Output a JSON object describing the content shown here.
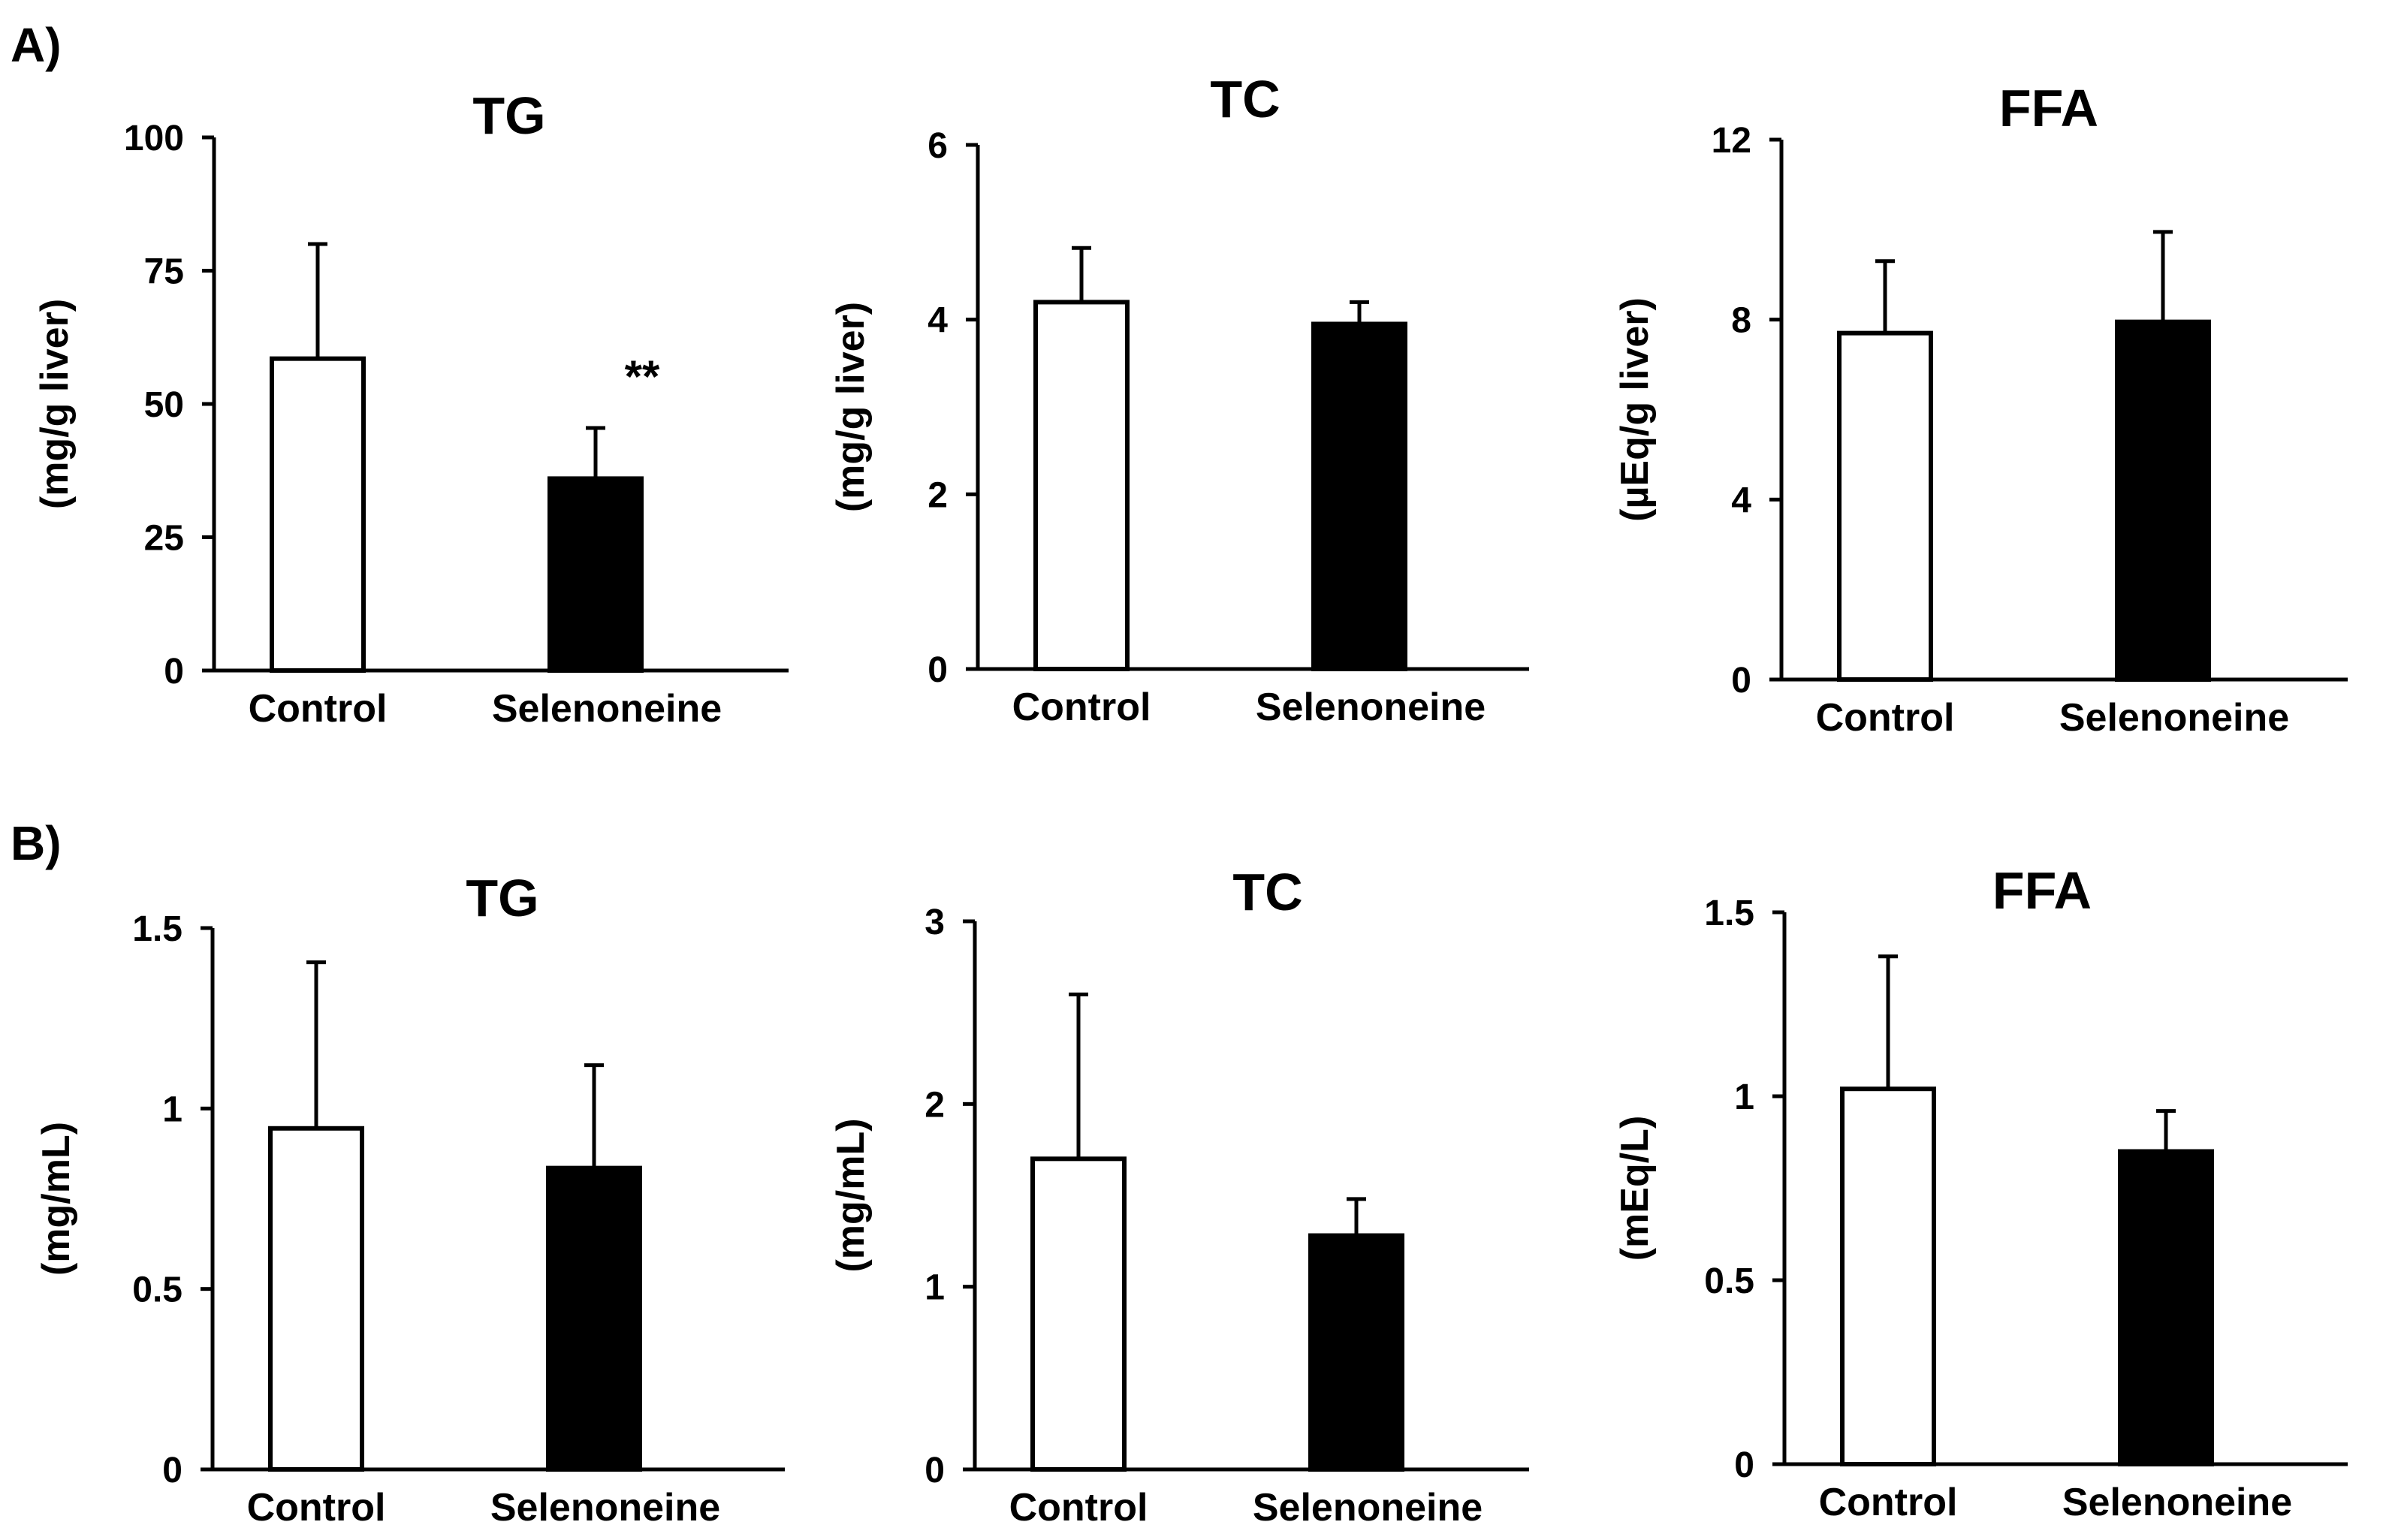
{
  "panels": [
    {
      "label": "A)"
    },
    {
      "label": "B)"
    }
  ],
  "chart_data": [
    {
      "type": "bar",
      "panel": "A)",
      "title": "TG",
      "xlabel": "",
      "ylabel": "(mg/g liver)",
      "categories": [
        "Control",
        "Selenoneine"
      ],
      "values": [
        58.5,
        36.0
      ],
      "errors": [
        21.5,
        9.5
      ],
      "ylim": [
        0,
        100
      ],
      "yticks": [
        "0",
        "25",
        "50",
        "75",
        "100"
      ],
      "bar_colors": [
        "#ffffff",
        "#000000"
      ],
      "annotations": [
        "",
        "**"
      ]
    },
    {
      "type": "bar",
      "panel": "A)",
      "title": "TC",
      "xlabel": "",
      "ylabel": "(mg/g liver)",
      "categories": [
        "Control",
        "Selenoneine"
      ],
      "values": [
        4.2,
        3.95
      ],
      "errors": [
        0.62,
        0.25
      ],
      "ylim": [
        0,
        6
      ],
      "yticks": [
        "0",
        "2",
        "4",
        "6"
      ],
      "bar_colors": [
        "#ffffff",
        "#000000"
      ],
      "annotations": [
        "",
        ""
      ]
    },
    {
      "type": "bar",
      "panel": "A)",
      "title": "FFA",
      "xlabel": "",
      "ylabel": "(µEq/g liver)",
      "categories": [
        "Control",
        "Selenoneine"
      ],
      "values": [
        7.7,
        7.95
      ],
      "errors": [
        1.6,
        2.0
      ],
      "ylim": [
        0,
        12
      ],
      "yticks": [
        "0",
        "4",
        "8",
        "12"
      ],
      "bar_colors": [
        "#ffffff",
        "#000000"
      ],
      "annotations": [
        "",
        ""
      ]
    },
    {
      "type": "bar",
      "panel": "B)",
      "title": "TG",
      "xlabel": "",
      "ylabel": "(mg/mL)",
      "categories": [
        "Control",
        "Selenoneine"
      ],
      "values": [
        0.945,
        0.835
      ],
      "errors": [
        0.46,
        0.285
      ],
      "ylim": [
        0,
        1.5
      ],
      "yticks": [
        "0",
        "0.5",
        "1",
        "1.5"
      ],
      "bar_colors": [
        "#ffffff",
        "#000000"
      ],
      "annotations": [
        "",
        ""
      ]
    },
    {
      "type": "bar",
      "panel": "B)",
      "title": "TC",
      "xlabel": "",
      "ylabel": "(mg/mL)",
      "categories": [
        "Control",
        "Selenoneine"
      ],
      "values": [
        1.7,
        1.28
      ],
      "errors": [
        0.9,
        0.2
      ],
      "ylim": [
        0,
        3
      ],
      "yticks": [
        "0",
        "1",
        "2",
        "3"
      ],
      "bar_colors": [
        "#ffffff",
        "#000000"
      ],
      "annotations": [
        "",
        ""
      ]
    },
    {
      "type": "bar",
      "panel": "B)",
      "title": "FFA",
      "xlabel": "",
      "ylabel": "(mEq/L)",
      "categories": [
        "Control",
        "Selenoneine"
      ],
      "values": [
        1.02,
        0.85
      ],
      "errors": [
        0.36,
        0.11
      ],
      "ylim": [
        0,
        1.5
      ],
      "yticks": [
        "0",
        "0.5",
        "1",
        "1.5"
      ],
      "bar_colors": [
        "#ffffff",
        "#000000"
      ],
      "annotations": [
        "",
        ""
      ]
    }
  ]
}
